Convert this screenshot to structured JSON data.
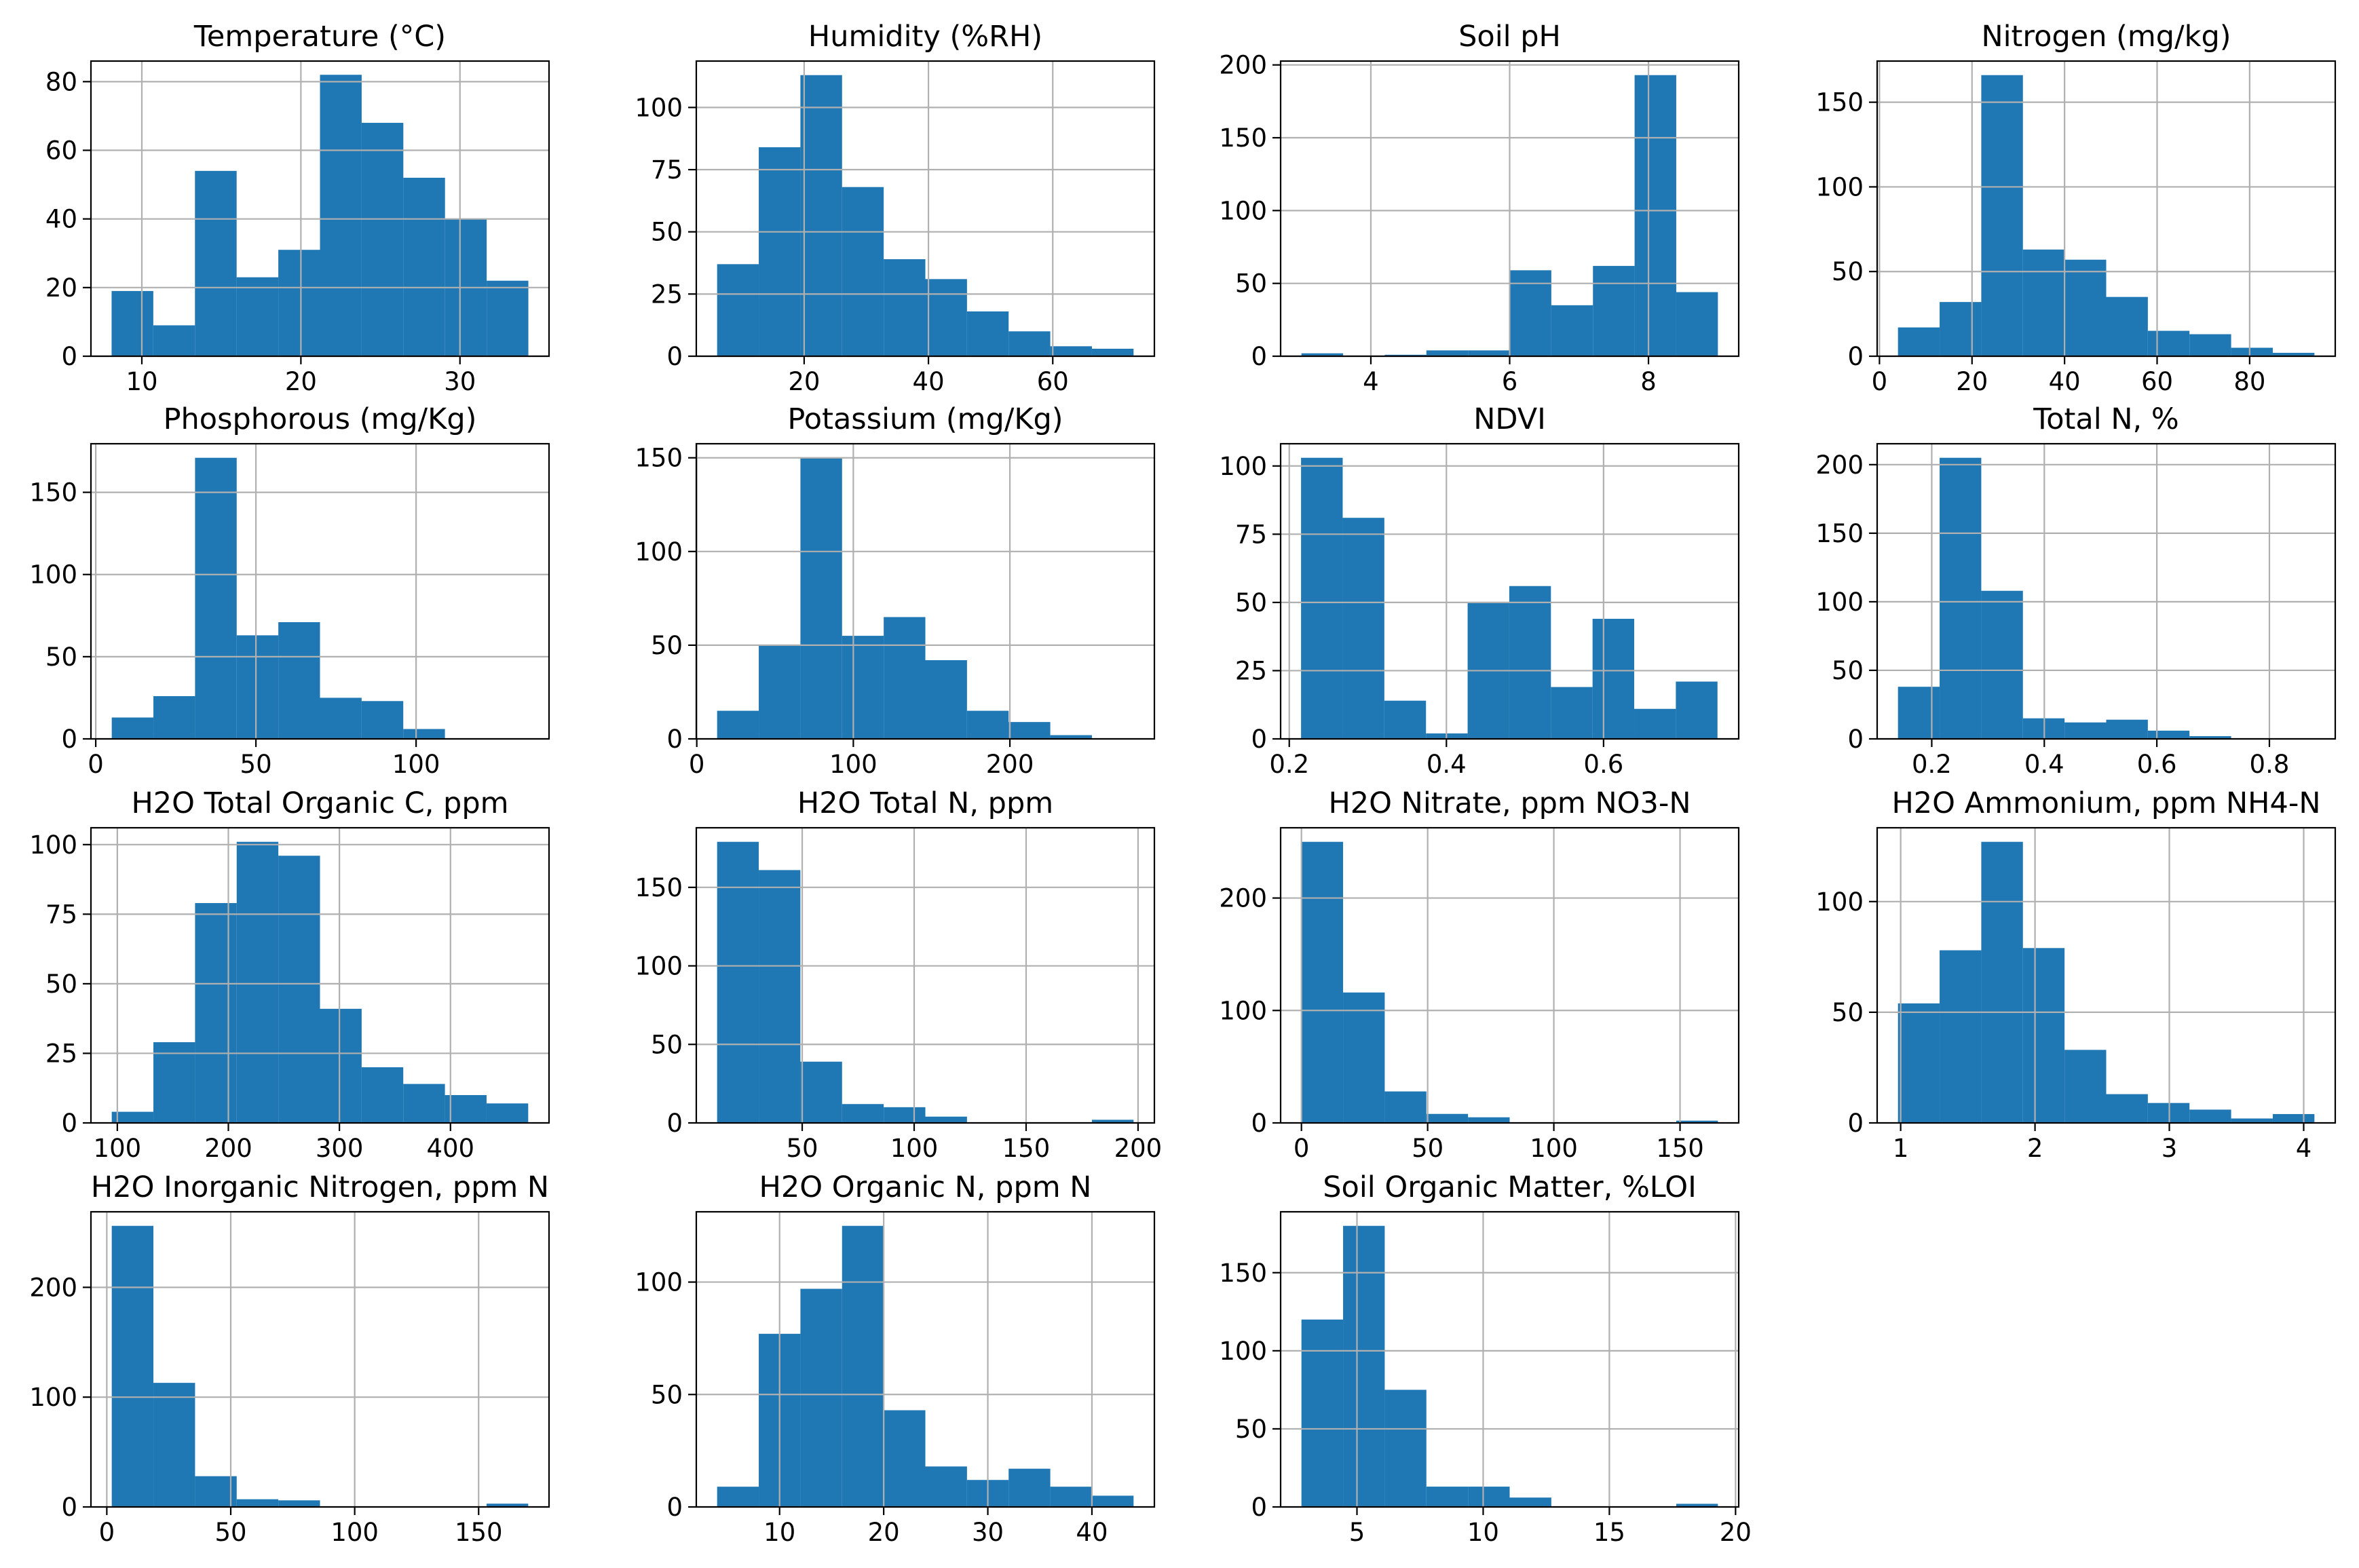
{
  "chart_data": [
    {
      "type": "bar",
      "title": "Temperature (°C)",
      "bin_edges": [
        8.1,
        10.72,
        13.34,
        15.96,
        18.58,
        21.2,
        23.82,
        26.44,
        29.06,
        31.68,
        34.3
      ],
      "values": [
        19,
        9,
        54,
        23,
        31,
        82,
        68,
        52,
        40,
        22
      ],
      "xticks": [
        10,
        20,
        30
      ],
      "xtick_labels": [
        "10",
        "20",
        "30"
      ],
      "yticks": [
        0,
        20,
        40,
        60,
        80
      ],
      "ytick_labels": [
        "0",
        "20",
        "40",
        "60",
        "80"
      ],
      "xlim": [
        6.8,
        35.6
      ],
      "ylim": [
        0,
        86
      ],
      "grid": true,
      "color": "#1f77b4"
    },
    {
      "type": "bar",
      "title": "Humidity (%RH)",
      "bin_edges": [
        6.0,
        12.7,
        19.4,
        26.1,
        32.8,
        39.5,
        46.2,
        52.9,
        59.6,
        66.3,
        73.0
      ],
      "values": [
        37,
        84,
        113,
        68,
        39,
        31,
        18,
        10,
        4,
        3
      ],
      "xticks": [
        20,
        40,
        60
      ],
      "xtick_labels": [
        "20",
        "40",
        "60"
      ],
      "yticks": [
        0,
        25,
        50,
        75,
        100
      ],
      "ytick_labels": [
        "0",
        "25",
        "50",
        "75",
        "100"
      ],
      "xlim": [
        2.65,
        76.35
      ],
      "ylim": [
        0,
        118.65
      ],
      "grid": true,
      "color": "#1f77b4"
    },
    {
      "type": "bar",
      "title": "Soil pH",
      "bin_edges": [
        3.0,
        3.6,
        4.2,
        4.8,
        5.4,
        6.0,
        6.6,
        7.2,
        7.8,
        8.4,
        9.0
      ],
      "values": [
        2,
        0,
        1,
        4,
        4,
        59,
        35,
        62,
        193,
        44
      ],
      "xticks": [
        4,
        6,
        8
      ],
      "xtick_labels": [
        "4",
        "6",
        "8"
      ],
      "yticks": [
        0,
        50,
        100,
        150,
        200
      ],
      "ytick_labels": [
        "0",
        "50",
        "100",
        "150",
        "200"
      ],
      "xlim": [
        2.7,
        9.3
      ],
      "ylim": [
        0,
        202.65
      ],
      "grid": true,
      "color": "#1f77b4"
    },
    {
      "type": "bar",
      "title": "Nitrogen (mg/kg)",
      "bin_edges": [
        4.0,
        13.0,
        22.0,
        31.0,
        40.0,
        49.0,
        58.0,
        67.0,
        76.0,
        85.0,
        94.0
      ],
      "values": [
        17,
        32,
        166,
        63,
        57,
        35,
        15,
        13,
        5,
        2
      ],
      "xticks": [
        0,
        20,
        40,
        60,
        80
      ],
      "xtick_labels": [
        "0",
        "20",
        "40",
        "60",
        "80"
      ],
      "yticks": [
        0,
        50,
        100,
        150
      ],
      "ytick_labels": [
        "0",
        "50",
        "100",
        "150"
      ],
      "xlim": [
        -0.5,
        98.5
      ],
      "ylim": [
        0,
        174.3
      ],
      "grid": true,
      "color": "#1f77b4"
    },
    {
      "type": "bar",
      "title": "Phosphorous (mg/Kg)",
      "bin_edges": [
        5.0,
        18.0,
        31.0,
        44.0,
        57.0,
        70.0,
        83.0,
        96.0,
        109.0,
        122.0,
        135.0
      ],
      "values": [
        13,
        26,
        171,
        63,
        71,
        25,
        23,
        6,
        0,
        0
      ],
      "xticks": [
        0,
        50,
        100
      ],
      "xtick_labels": [
        "0",
        "50",
        "100"
      ],
      "yticks": [
        0,
        50,
        100,
        150
      ],
      "ytick_labels": [
        "0",
        "50",
        "100",
        "150"
      ],
      "xlim": [
        -1.5,
        141.5
      ],
      "ylim": [
        0,
        179.55
      ],
      "grid": true,
      "color": "#1f77b4"
    },
    {
      "type": "bar",
      "title": "Potassium (mg/Kg)",
      "bin_edges": [
        13.0,
        39.6,
        66.2,
        92.8,
        119.4,
        146.0,
        172.6,
        199.2,
        225.8,
        252.4,
        279.0
      ],
      "values": [
        15,
        50,
        150,
        55,
        65,
        42,
        15,
        9,
        2,
        0
      ],
      "xticks": [
        0,
        100,
        200
      ],
      "xtick_labels": [
        "0",
        "100",
        "200"
      ],
      "yticks": [
        0,
        50,
        100,
        150
      ],
      "ytick_labels": [
        "0",
        "50",
        "100",
        "150"
      ],
      "xlim": [
        -0.3,
        292.3
      ],
      "ylim": [
        0,
        157.5
      ],
      "grid": true,
      "color": "#1f77b4"
    },
    {
      "type": "bar",
      "title": "NDVI",
      "bin_edges": [
        0.215,
        0.268,
        0.321,
        0.374,
        0.427,
        0.48,
        0.533,
        0.586,
        0.639,
        0.692,
        0.745
      ],
      "values": [
        103,
        81,
        14,
        2,
        50,
        56,
        19,
        44,
        11,
        21
      ],
      "xticks": [
        0.2,
        0.4,
        0.6
      ],
      "xtick_labels": [
        "0.2",
        "0.4",
        "0.6"
      ],
      "yticks": [
        0,
        25,
        50,
        75,
        100
      ],
      "ytick_labels": [
        "0",
        "25",
        "50",
        "75",
        "100"
      ],
      "xlim": [
        0.189,
        0.772
      ],
      "ylim": [
        0,
        108.15
      ],
      "grid": true,
      "color": "#1f77b4"
    },
    {
      "type": "bar",
      "title": "Total N, %",
      "bin_edges": [
        0.14,
        0.214,
        0.288,
        0.362,
        0.436,
        0.51,
        0.584,
        0.658,
        0.732,
        0.806,
        0.88
      ],
      "values": [
        38,
        205,
        108,
        15,
        12,
        14,
        6,
        2,
        0,
        0
      ],
      "xticks": [
        0.2,
        0.4,
        0.6,
        0.8
      ],
      "xtick_labels": [
        "0.2",
        "0.4",
        "0.6",
        "0.8"
      ],
      "yticks": [
        0,
        50,
        100,
        150,
        200
      ],
      "ytick_labels": [
        "0",
        "50",
        "100",
        "150",
        "200"
      ],
      "xlim": [
        0.103,
        0.917
      ],
      "ylim": [
        0,
        215.25
      ],
      "grid": true,
      "color": "#1f77b4"
    },
    {
      "type": "bar",
      "title": "H2O Total Organic C, ppm",
      "bin_edges": [
        95.0,
        132.5,
        170.0,
        207.5,
        245.0,
        282.5,
        320.0,
        357.5,
        395.0,
        432.5,
        470.0
      ],
      "values": [
        4,
        29,
        79,
        101,
        96,
        41,
        20,
        14,
        10,
        7
      ],
      "xticks": [
        100,
        200,
        300,
        400
      ],
      "xtick_labels": [
        "100",
        "200",
        "300",
        "400"
      ],
      "yticks": [
        0,
        25,
        50,
        75,
        100
      ],
      "ytick_labels": [
        "0",
        "25",
        "50",
        "75",
        "100"
      ],
      "xlim": [
        76.25,
        488.75
      ],
      "ylim": [
        0,
        106.05
      ],
      "grid": true,
      "color": "#1f77b4"
    },
    {
      "type": "bar",
      "title": "H2O Total N, ppm",
      "bin_edges": [
        12.0,
        30.6,
        49.2,
        67.8,
        86.4,
        105.0,
        123.6,
        142.2,
        160.8,
        179.4,
        198.0
      ],
      "values": [
        179,
        161,
        39,
        12,
        10,
        4,
        0,
        0,
        0,
        2
      ],
      "xticks": [
        50,
        100,
        150,
        200
      ],
      "xtick_labels": [
        "50",
        "100",
        "150",
        "200"
      ],
      "yticks": [
        0,
        50,
        100,
        150
      ],
      "ytick_labels": [
        "0",
        "50",
        "100",
        "150"
      ],
      "xlim": [
        2.7,
        207.3
      ],
      "ylim": [
        0,
        187.95
      ],
      "grid": true,
      "color": "#1f77b4"
    },
    {
      "type": "bar",
      "title": "H2O Nitrate, ppm NO3-N",
      "bin_edges": [
        0.0,
        16.5,
        33.0,
        49.5,
        66.0,
        82.5,
        99.0,
        115.5,
        132.0,
        148.5,
        165.0
      ],
      "values": [
        250,
        116,
        28,
        8,
        5,
        0,
        0,
        0,
        0,
        2
      ],
      "xticks": [
        0,
        50,
        100,
        150
      ],
      "xtick_labels": [
        "0",
        "50",
        "100",
        "150"
      ],
      "yticks": [
        0,
        100,
        200
      ],
      "ytick_labels": [
        "0",
        "100",
        "200"
      ],
      "xlim": [
        -8.25,
        173.25
      ],
      "ylim": [
        0,
        262.5
      ],
      "grid": true,
      "color": "#1f77b4"
    },
    {
      "type": "bar",
      "title": "H2O Ammonium, ppm NH4-N",
      "bin_edges": [
        0.98,
        1.29,
        1.6,
        1.91,
        2.22,
        2.53,
        2.84,
        3.15,
        3.46,
        3.77,
        4.08
      ],
      "values": [
        54,
        78,
        127,
        79,
        33,
        13,
        9,
        6,
        2,
        4
      ],
      "xticks": [
        1,
        2,
        3,
        4
      ],
      "xtick_labels": [
        "1",
        "2",
        "3",
        "4"
      ],
      "yticks": [
        0,
        50,
        100
      ],
      "ytick_labels": [
        "0",
        "50",
        "100"
      ],
      "xlim": [
        0.825,
        4.235
      ],
      "ylim": [
        0,
        133.35
      ],
      "grid": true,
      "color": "#1f77b4"
    },
    {
      "type": "bar",
      "title": "H2O Inorganic Nitrogen, ppm N",
      "bin_edges": [
        2.0,
        18.8,
        35.6,
        52.4,
        69.2,
        86.0,
        102.8,
        119.6,
        136.4,
        153.2,
        170.0
      ],
      "values": [
        256,
        113,
        28,
        7,
        6,
        0,
        0,
        0,
        0,
        3
      ],
      "xticks": [
        0,
        50,
        100,
        150
      ],
      "xtick_labels": [
        "0",
        "50",
        "100",
        "150"
      ],
      "yticks": [
        0,
        100,
        200
      ],
      "ytick_labels": [
        "0",
        "100",
        "200"
      ],
      "xlim": [
        -6.4,
        178.4
      ],
      "ylim": [
        0,
        268.8
      ],
      "grid": true,
      "color": "#1f77b4"
    },
    {
      "type": "bar",
      "title": "H2O Organic N, ppm N",
      "bin_edges": [
        4.0,
        8.0,
        12.0,
        16.0,
        20.0,
        24.0,
        28.0,
        32.0,
        36.0,
        40.0,
        44.0
      ],
      "values": [
        9,
        77,
        97,
        125,
        43,
        18,
        12,
        17,
        9,
        5
      ],
      "xticks": [
        10,
        20,
        30,
        40
      ],
      "xtick_labels": [
        "10",
        "20",
        "30",
        "40"
      ],
      "yticks": [
        0,
        50,
        100
      ],
      "ytick_labels": [
        "0",
        "50",
        "100"
      ],
      "xlim": [
        2.0,
        46.0
      ],
      "ylim": [
        0,
        131.25
      ],
      "grid": true,
      "color": "#1f77b4"
    },
    {
      "type": "bar",
      "title": "Soil Organic Matter, %LOI",
      "bin_edges": [
        2.8,
        4.45,
        6.1,
        7.75,
        9.4,
        11.05,
        12.7,
        14.35,
        16.0,
        17.65,
        19.3
      ],
      "values": [
        120,
        180,
        75,
        13,
        13,
        6,
        0,
        0,
        0,
        2
      ],
      "xticks": [
        5,
        10,
        15,
        20
      ],
      "xtick_labels": [
        "5",
        "10",
        "15",
        "20"
      ],
      "yticks": [
        0,
        50,
        100,
        150
      ],
      "ytick_labels": [
        "0",
        "50",
        "100",
        "150"
      ],
      "xlim": [
        1.975,
        20.125
      ],
      "ylim": [
        0,
        189
      ],
      "grid": true,
      "color": "#1f77b4"
    }
  ]
}
